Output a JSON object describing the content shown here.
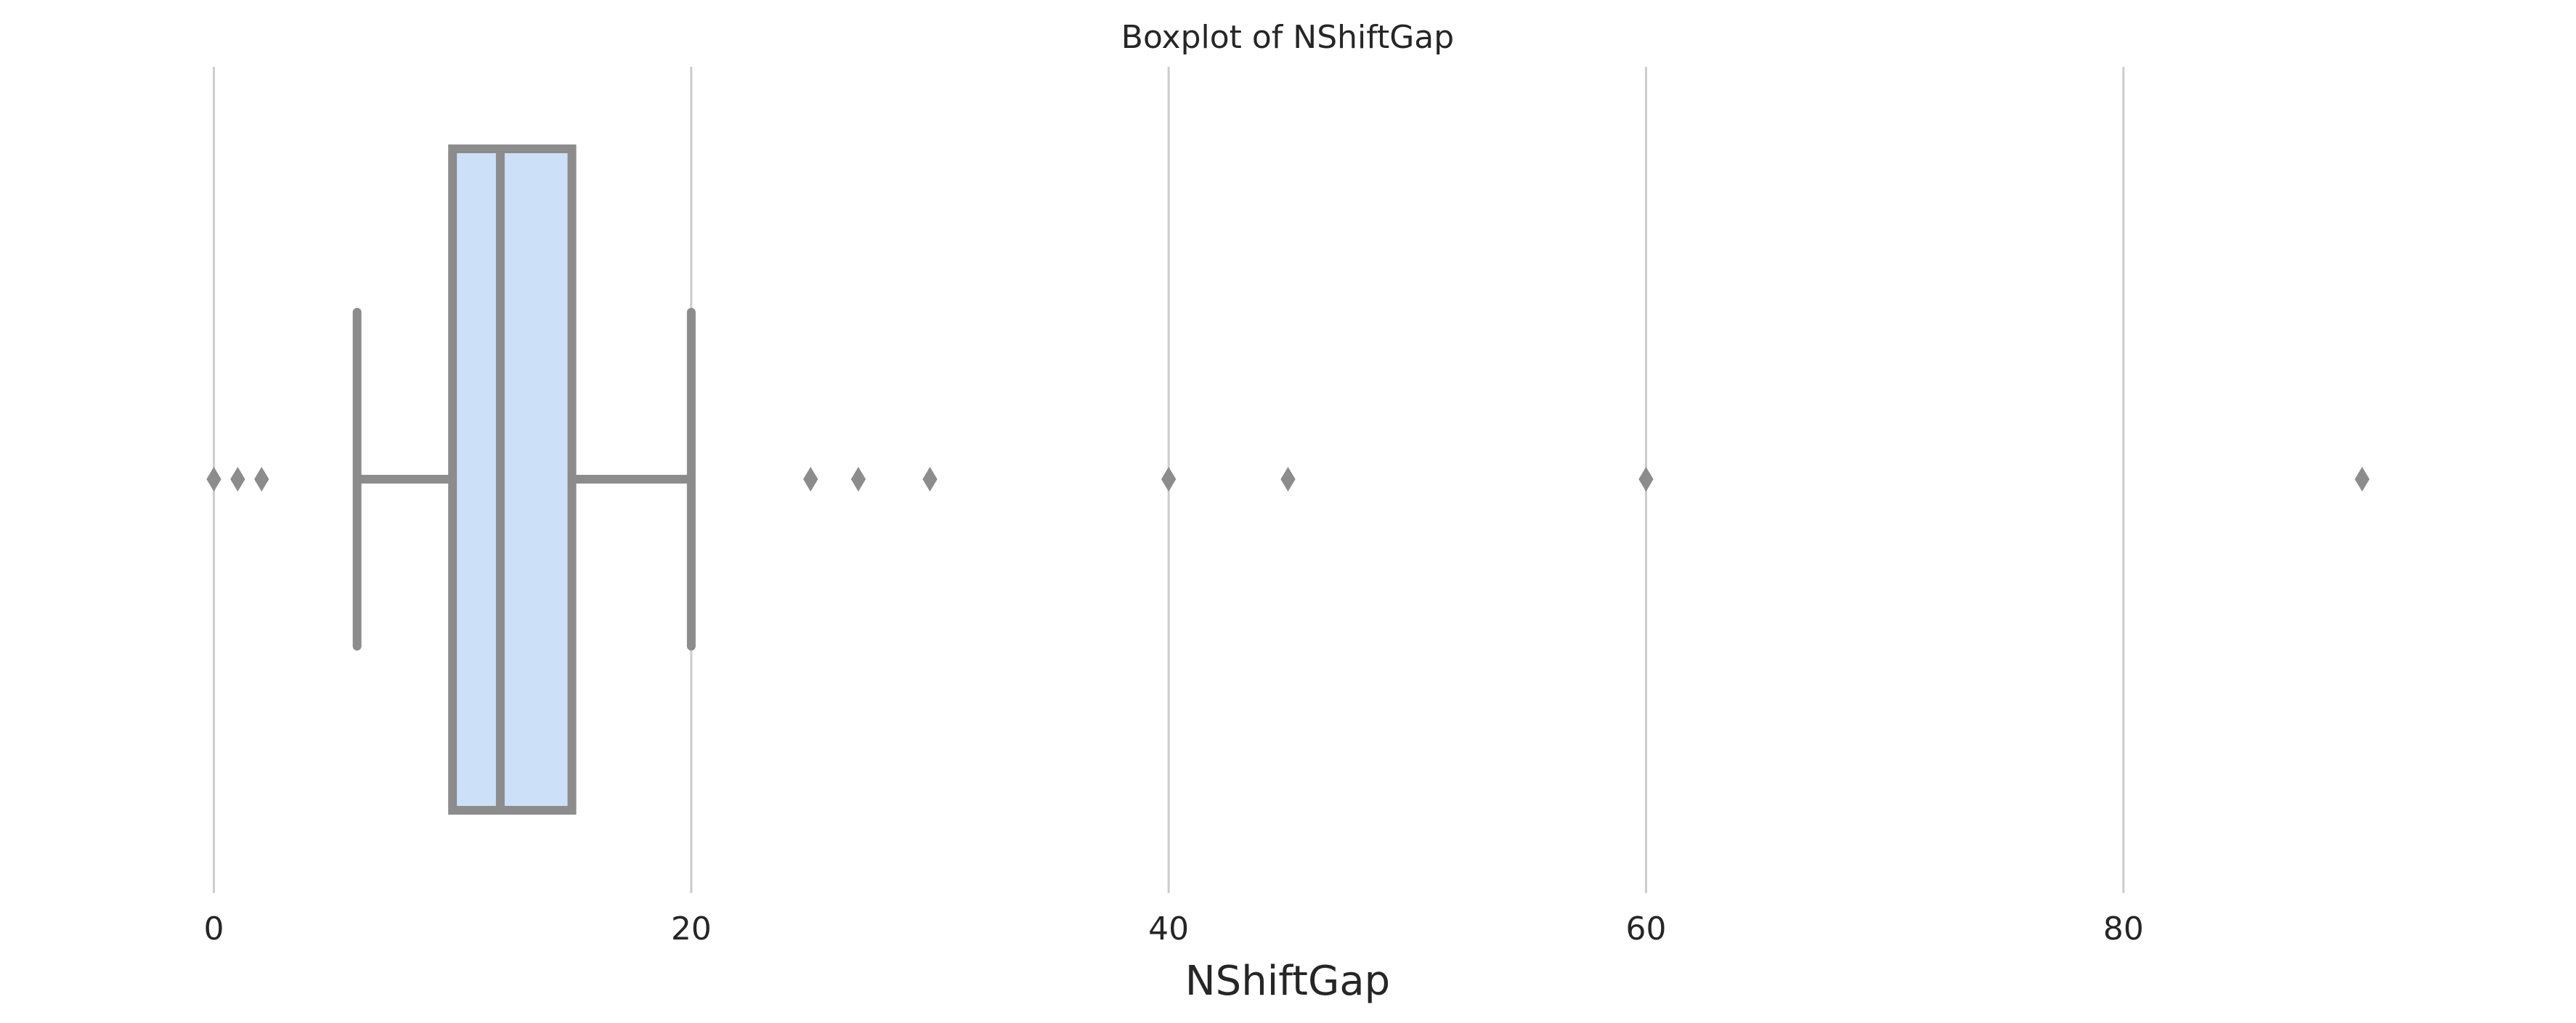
{
  "chart_data": {
    "type": "box",
    "orientation": "horizontal",
    "title": "Boxplot of NShiftGap",
    "xlabel": "NShiftGap",
    "ylabel": "",
    "xlim": [
      -5.4,
      95.4
    ],
    "xticks": [
      0,
      20,
      40,
      60,
      80
    ],
    "xtick_labels": [
      "0",
      "20",
      "40",
      "60",
      "80"
    ],
    "grid": "vertical",
    "box": {
      "whisker_low": 6,
      "q1": 10,
      "median": 12,
      "q3": 15,
      "whisker_high": 20
    },
    "outliers": [
      0,
      1,
      2,
      25,
      27,
      30,
      40,
      45,
      60,
      90
    ],
    "colors": {
      "box_fill": "#cce0f7",
      "box_edge": "#8c8c8c",
      "grid": "#cccccc",
      "text": "#262626"
    }
  }
}
